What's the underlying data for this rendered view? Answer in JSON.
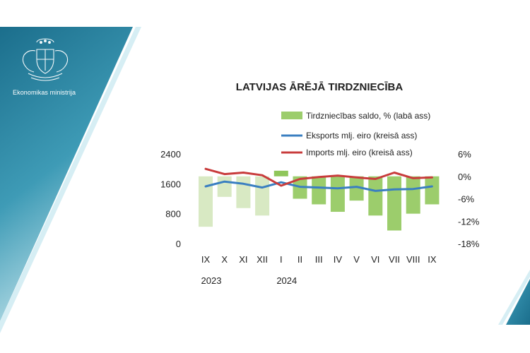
{
  "ministry": {
    "name": "Ekonomikas ministrija"
  },
  "colors": {
    "banner_dark": "#1b6e8c",
    "banner_light": "#7fc6d6"
  },
  "icons": {
    "logo": "latvia-coat-of-arms-icon"
  },
  "chart_data": {
    "type": "bar-line-combo",
    "title": "LATVIJAS ĀRĒJĀ TIRDZNIECĪBA",
    "categories": [
      "IX",
      "X",
      "XI",
      "XII",
      "I",
      "II",
      "III",
      "IV",
      "V",
      "VI",
      "VII",
      "VIII",
      "IX"
    ],
    "year_labels": [
      {
        "index": 0,
        "label": "2023"
      },
      {
        "index": 4,
        "label": "2024"
      }
    ],
    "left_axis": {
      "ylim": [
        0,
        2400
      ],
      "ticks": [
        "0",
        "800",
        "1600",
        "2400"
      ]
    },
    "right_axis": {
      "ylim": [
        -18,
        6
      ],
      "ticks": [
        "6%",
        "0%",
        "-6%",
        "-12%",
        "-18%"
      ]
    },
    "series": [
      {
        "name": "Tirdzniecības saldo, % (labā ass)",
        "kind": "bar",
        "axis": "right",
        "values": [
          -13.5,
          -5.5,
          -8.5,
          -10.5,
          1.5,
          -6,
          -7.5,
          -9.5,
          -6.5,
          -10.5,
          -14.5,
          -10,
          -7.5
        ],
        "colors": [
          "#d8e9c3",
          "#d8e9c3",
          "#d8e9c3",
          "#d8e9c3",
          "#8fc65a",
          "#9ccd6c",
          "#9ccd6c",
          "#9ccd6c",
          "#9ccd6c",
          "#9ccd6c",
          "#9ccd6c",
          "#9ccd6c",
          "#9ccd6c"
        ]
      },
      {
        "name": "Eksports mlj. eiro (kreisā ass)",
        "kind": "line",
        "axis": "left",
        "color": "#3a7fc1",
        "values": [
          1530,
          1660,
          1600,
          1500,
          1640,
          1520,
          1500,
          1480,
          1520,
          1410,
          1450,
          1460,
          1530
        ]
      },
      {
        "name": "Imports mlj. eiro (kreisā ass)",
        "kind": "line",
        "axis": "left",
        "color": "#c83c3c",
        "values": [
          2000,
          1860,
          1900,
          1830,
          1550,
          1730,
          1780,
          1820,
          1770,
          1730,
          1900,
          1750,
          1770
        ]
      }
    ],
    "legend_position": "top"
  }
}
